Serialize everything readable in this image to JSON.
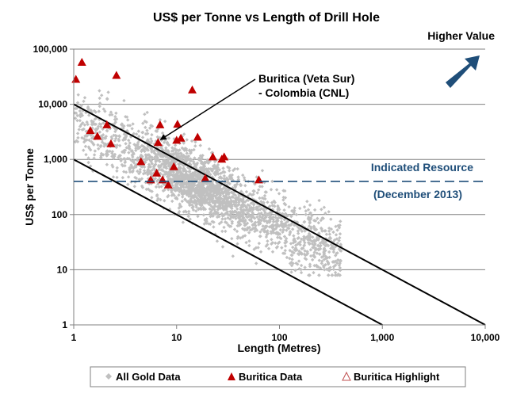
{
  "chart_data": {
    "type": "scatter",
    "title": "US$ per Tonne vs Length of Drill Hole",
    "xlabel": "Length (Metres)",
    "ylabel": "US$ per Tonne",
    "x_scale": "log",
    "y_scale": "log",
    "xlim": [
      1,
      10000
    ],
    "ylim": [
      1,
      100000
    ],
    "x_ticks": [
      1,
      10,
      100,
      1000,
      10000
    ],
    "x_tick_labels": [
      "1",
      "10",
      "100",
      "1,000",
      "10,000"
    ],
    "y_ticks": [
      1,
      10,
      100,
      1000,
      10000,
      100000
    ],
    "y_tick_labels": [
      "1",
      "10",
      "100",
      "1,000",
      "10,000",
      "100,000"
    ],
    "grid": "horizontal major",
    "annotations": {
      "higher_value": "Higher Value",
      "callout_line1": "Buritica (Veta Sur)",
      "callout_line2": "- Colombia (CNL)",
      "callout_target": [
        6.5,
        2000
      ],
      "resource_line1": "Indicated Resource",
      "resource_line2": "(December 2013)"
    },
    "reference_lines": [
      {
        "name": "upper-diagonal",
        "points": [
          [
            1,
            10000
          ],
          [
            10000,
            1
          ]
        ]
      },
      {
        "name": "lower-diagonal",
        "points": [
          [
            1,
            1000
          ],
          [
            1000,
            1
          ]
        ]
      }
    ],
    "resource_level": 400,
    "legend": {
      "position": "bottom",
      "entries": [
        "All Gold Data",
        "Buritica Data",
        "Buritica Highlight"
      ]
    },
    "series": [
      {
        "name": "Buritica Data",
        "marker": "triangle",
        "color": "#c00000",
        "points": [
          [
            1.05,
            28000
          ],
          [
            1.2,
            57000
          ],
          [
            2.6,
            33000
          ],
          [
            1.45,
            3300
          ],
          [
            1.7,
            2600
          ],
          [
            2.1,
            4200
          ],
          [
            2.3,
            1900
          ],
          [
            4.5,
            900
          ],
          [
            5.6,
            420
          ],
          [
            6.4,
            560
          ],
          [
            6.6,
            2000
          ],
          [
            6.9,
            4200
          ],
          [
            7.3,
            420
          ],
          [
            8.3,
            340
          ],
          [
            9.4,
            730
          ],
          [
            10.2,
            4300
          ],
          [
            10.0,
            2200
          ],
          [
            11.0,
            2400
          ],
          [
            14.2,
            18000
          ],
          [
            16.0,
            2500
          ],
          [
            19.0,
            450
          ],
          [
            22.5,
            1100
          ],
          [
            27.5,
            1000
          ],
          [
            29.0,
            1100
          ],
          [
            63.0,
            420
          ]
        ]
      },
      {
        "name": "All Gold Data",
        "marker": "diamond",
        "color": "#c0c0c0",
        "generated": true,
        "count": 2600,
        "trend": {
          "intercept_log10": 3.7,
          "slope": -0.95,
          "x_log10_range": [
            0,
            2.6
          ]
        }
      }
    ]
  }
}
